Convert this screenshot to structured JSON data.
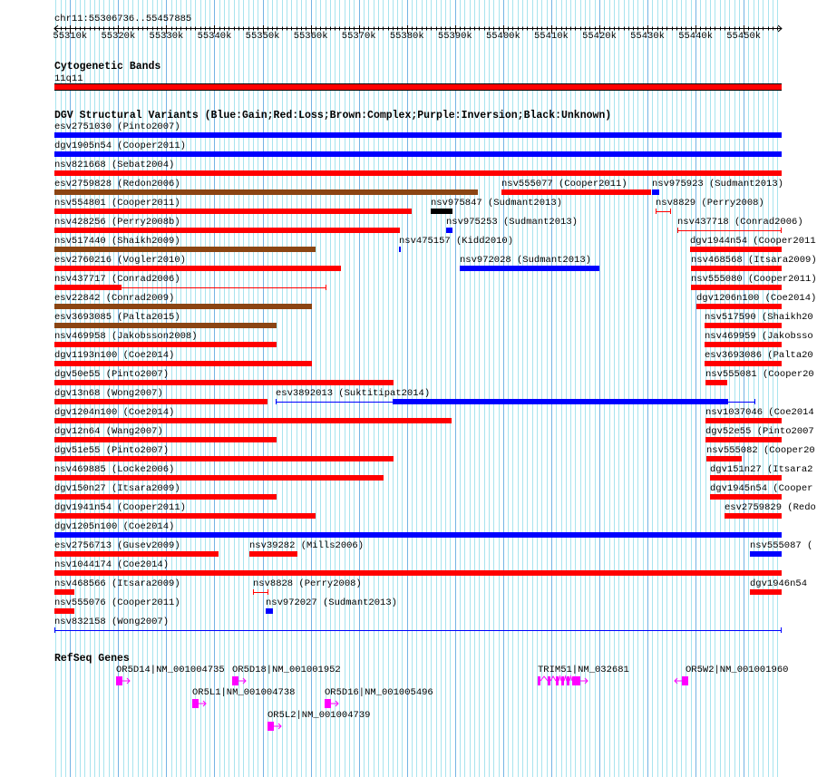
{
  "view": {
    "chrom": "chr11",
    "start_kb": 55306.736,
    "end_kb": 55457.885
  },
  "ruler": {
    "label": "chr11:55306736..55457885",
    "ticks": [
      "55310k",
      "55320k",
      "55330k",
      "55340k",
      "55350k",
      "55360k",
      "55370k",
      "55380k",
      "55390k",
      "55400k",
      "55410k",
      "55420k",
      "55430k",
      "55440k",
      "55450k"
    ]
  },
  "colors": {
    "gain": "#0000ff",
    "loss": "#ff0000",
    "complex": "#8b4513",
    "unknown": "#000000",
    "gene": "#ff00ff",
    "band": "#ff0000",
    "grid_minor": "#a8e4ee",
    "grid_major": "#74b4e4"
  },
  "cyto": {
    "title": "Cytogenetic Bands",
    "band": "11q11"
  },
  "dgv": {
    "title": "DGV Structural Variants (Blue:Gain;Red:Loss;Brown:Complex;Purple:Inversion;Black:Unknown)",
    "rows": [
      [
        {
          "label": "esv2751030 (Pinto2007)",
          "type": "gain",
          "start": 55306.7,
          "end": 55457.9
        }
      ],
      [
        {
          "label": "dgv1905n54 (Cooper2011)",
          "type": "gain",
          "start": 55306.7,
          "end": 55457.9
        }
      ],
      [
        {
          "label": "nsv821668 (Sebat2004)",
          "type": "loss",
          "start": 55306.7,
          "end": 55457.9
        }
      ],
      [
        {
          "label": "esv2759828 (Redon2006)",
          "type": "complex",
          "start": 55306.7,
          "end": 55394.7
        },
        {
          "label": "nsv555077 (Cooper2011)",
          "type": "loss",
          "start": 55399.6,
          "end": 55430.7
        },
        {
          "label": "nsv975923 (Sudmant2013)",
          "type": "gain",
          "start": 55430.9,
          "end": 55432.4
        }
      ],
      [
        {
          "label": "nsv554801 (Cooper2011)",
          "type": "loss",
          "start": 55306.7,
          "end": 55381.0
        },
        {
          "label": "nsv975847 (Sudmant2013)",
          "type": "unknown",
          "start": 55384.9,
          "end": 55389.4
        },
        {
          "label": "nsv8829 (Perry2008)",
          "type": "loss",
          "start": 55431.7,
          "end": 55434.9,
          "line": true
        }
      ],
      [
        {
          "label": "nsv428256 (Perry2008b)",
          "type": "loss",
          "start": 55306.7,
          "end": 55378.5
        },
        {
          "label": "nsv975253 (Sudmant2013)",
          "type": "gain",
          "start": 55388.1,
          "end": 55389.4
        },
        {
          "label": "nsv437718 (Conrad2006)",
          "type": "loss",
          "start": 55436.2,
          "end": 55457.9,
          "line": true
        }
      ],
      [
        {
          "label": "nsv517440 (Shaikh2009)",
          "type": "complex",
          "start": 55306.7,
          "end": 55361.0
        },
        {
          "label": "nsv475157 (Kidd2010)",
          "type": "gain",
          "start": 55378.3,
          "end": 55378.7
        },
        {
          "label": "dgv1944n54 (Cooper2011",
          "type": "loss",
          "start": 55438.8,
          "end": 55457.9
        }
      ],
      [
        {
          "label": "esv2760216 (Vogler2010)",
          "type": "loss",
          "start": 55306.7,
          "end": 55366.3
        },
        {
          "label": "nsv972028 (Sudmant2013)",
          "type": "gain",
          "start": 55390.9,
          "end": 55420.0
        },
        {
          "label": "nsv468568 (Itsara2009)",
          "type": "loss",
          "start": 55439.0,
          "end": 55457.9
        }
      ],
      [
        {
          "label": "nsv437717 (Conrad2006)",
          "type": "loss",
          "start": 55306.7,
          "end": 55363.2,
          "line": true,
          "thick_start": 55306.7,
          "thick_end": 55320.6
        },
        {
          "label": "nsv555080 (Cooper2011)",
          "type": "loss",
          "start": 55439.0,
          "end": 55457.9
        }
      ],
      [
        {
          "label": "esv22842 (Conrad2009)",
          "type": "complex",
          "start": 55306.7,
          "end": 55360.2
        },
        {
          "label": "dgv1206n100 (Coe2014)",
          "type": "loss",
          "start": 55440.1,
          "end": 55457.9
        }
      ],
      [
        {
          "label": "esv3693085 (Palta2015)",
          "type": "complex",
          "start": 55306.7,
          "end": 55352.9
        },
        {
          "label": "nsv517590 (Shaikh20",
          "type": "loss",
          "start": 55441.8,
          "end": 55457.9
        }
      ],
      [
        {
          "label": "nsv469958 (Jakobsson2008)",
          "type": "loss",
          "start": 55306.7,
          "end": 55352.9
        },
        {
          "label": "nsv469959 (Jakobsso",
          "type": "loss",
          "start": 55441.8,
          "end": 55457.9
        }
      ],
      [
        {
          "label": "dgv1193n100 (Coe2014)",
          "type": "loss",
          "start": 55306.7,
          "end": 55360.2
        },
        {
          "label": "esv3693086 (Palta20",
          "type": "loss",
          "start": 55441.8,
          "end": 55457.9
        }
      ],
      [
        {
          "label": "dgv50e55 (Pinto2007)",
          "type": "loss",
          "start": 55306.7,
          "end": 55377.2
        },
        {
          "label": "nsv555081 (Cooper20",
          "type": "loss",
          "start": 55442.0,
          "end": 55446.5
        }
      ],
      [
        {
          "label": "dgv13n68 (Wong2007)",
          "type": "loss",
          "start": 55306.7,
          "end": 55351.0
        },
        {
          "label": "esv3892013 (Suktitipat2014)",
          "type": "gain",
          "start": 55352.7,
          "end": 55452.4,
          "line": true,
          "thick_start": 55377.0,
          "thick_end": 55446.7
        }
      ],
      [
        {
          "label": "dgv1204n100 (Coe2014)",
          "type": "loss",
          "start": 55306.7,
          "end": 55389.2
        },
        {
          "label": "nsv1037046 (Coe2014",
          "type": "loss",
          "start": 55442.0,
          "end": 55457.9
        }
      ],
      [
        {
          "label": "dgv12n64 (Wang2007)",
          "type": "loss",
          "start": 55306.7,
          "end": 55352.9
        },
        {
          "label": "dgv52e55 (Pinto2007",
          "type": "loss",
          "start": 55442.0,
          "end": 55457.9
        }
      ],
      [
        {
          "label": "dgv51e55 (Pinto2007)",
          "type": "loss",
          "start": 55306.7,
          "end": 55377.2
        },
        {
          "label": "nsv555082 (Cooper20",
          "type": "loss",
          "start": 55442.2,
          "end": 55449.6
        }
      ],
      [
        {
          "label": "nsv469885 (Locke2006)",
          "type": "loss",
          "start": 55306.7,
          "end": 55375.1
        },
        {
          "label": "dgv151n27 (Itsara2",
          "type": "loss",
          "start": 55443.0,
          "end": 55457.9
        }
      ],
      [
        {
          "label": "dgv150n27 (Itsara2009)",
          "type": "loss",
          "start": 55306.7,
          "end": 55352.9
        },
        {
          "label": "dgv1945n54 (Cooper",
          "type": "loss",
          "start": 55443.0,
          "end": 55457.9
        }
      ],
      [
        {
          "label": "dgv1941n54 (Cooper2011)",
          "type": "loss",
          "start": 55306.7,
          "end": 55361.0
        },
        {
          "label": "esv2759829 (Redo",
          "type": "loss",
          "start": 55446.0,
          "end": 55457.9
        }
      ],
      [
        {
          "label": "dgv1205n100 (Coe2014)",
          "type": "gain",
          "start": 55306.7,
          "end": 55457.9
        }
      ],
      [
        {
          "label": "esv2756713 (Gusev2009)",
          "type": "loss",
          "start": 55306.7,
          "end": 55340.8
        },
        {
          "label": "nsv39282 (Mills2006)",
          "type": "loss",
          "start": 55347.2,
          "end": 55357.2
        },
        {
          "label": "nsv555087 (",
          "type": "gain",
          "start": 55451.3,
          "end": 55457.9
        }
      ],
      [
        {
          "label": "nsv1044174 (Coe2014)",
          "type": "loss",
          "start": 55306.7,
          "end": 55457.9
        }
      ],
      [
        {
          "label": "nsv468566 (Itsara2009)",
          "type": "loss",
          "start": 55306.7,
          "end": 55310.8
        },
        {
          "label": "nsv8828 (Perry2008)",
          "type": "loss",
          "start": 55348.0,
          "end": 55351.2,
          "line": true
        },
        {
          "label": "dgv1946n54",
          "type": "loss",
          "start": 55451.3,
          "end": 55457.9
        }
      ],
      [
        {
          "label": "nsv555076 (Cooper2011)",
          "type": "loss",
          "start": 55306.7,
          "end": 55310.8
        },
        {
          "label": "nsv972027 (Sudmant2013)",
          "type": "gain",
          "start": 55350.6,
          "end": 55352.1
        }
      ],
      [
        {
          "label": "nsv832158 (Wong2007)",
          "type": "gain",
          "start": 55306.7,
          "end": 55457.9,
          "line": true
        }
      ]
    ]
  },
  "refseq": {
    "title": "RefSeq Genes",
    "genes": [
      {
        "label": "OR5D14|NM_001004735",
        "row": 0,
        "strand": "+",
        "start": 55319.5,
        "end": 55320.8
      },
      {
        "label": "OR5D18|NM_001001952",
        "row": 0,
        "strand": "+",
        "start": 55343.6,
        "end": 55345.0
      },
      {
        "label": "TRIM51|NM_032681",
        "row": 0,
        "strand": "+",
        "start": 55407.2,
        "end": 55416.0,
        "exons": [
          [
            55407.2,
            55407.7
          ],
          [
            55409.2,
            55409.6
          ],
          [
            55410.9,
            55411.3
          ],
          [
            55412.1,
            55412.6
          ],
          [
            55413.2,
            55413.8
          ],
          [
            55414.3,
            55416.0
          ]
        ]
      },
      {
        "label": "OR5W2|NM_001001960",
        "row": 0,
        "strand": "-",
        "start": 55437.1,
        "end": 55438.4
      },
      {
        "label": "OR5L1|NM_001004738",
        "row": 1,
        "strand": "+",
        "start": 55335.3,
        "end": 55336.7
      },
      {
        "label": "OR5D16|NM_001005496",
        "row": 1,
        "strand": "+",
        "start": 55362.9,
        "end": 55364.2
      },
      {
        "label": "OR5L2|NM_001004739",
        "row": 2,
        "strand": "+",
        "start": 55351.0,
        "end": 55352.3
      }
    ]
  }
}
